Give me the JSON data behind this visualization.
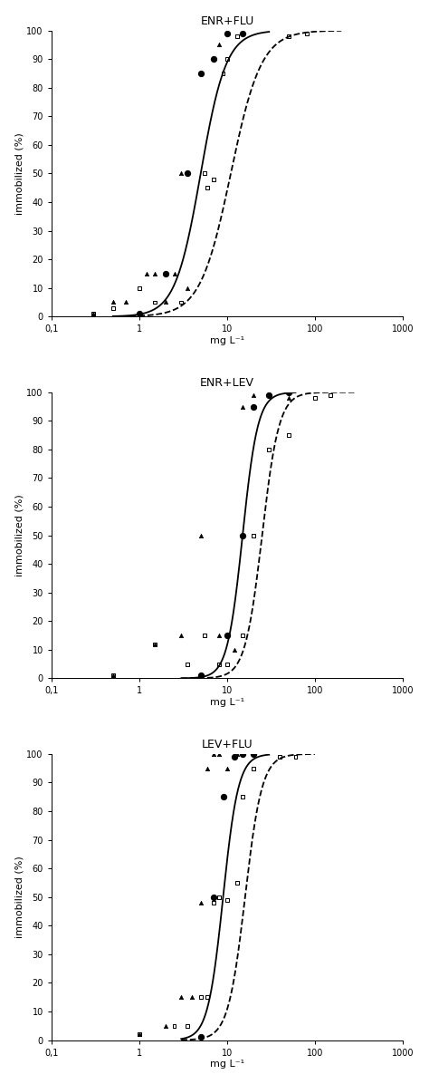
{
  "panels": [
    {
      "title": "ENR+FLU",
      "xlabel": "mg L⁻¹",
      "ylabel": "immobilized (%)",
      "xlim_log": [
        -1,
        3
      ],
      "xlim": [
        0.1,
        1000
      ],
      "ylim": [
        0,
        100
      ],
      "curve1_ec50": 5.0,
      "curve1_hill": 3.0,
      "curve1_xstart": 0.5,
      "curve1_xend": 30,
      "curve2_ec50": 11.0,
      "curve2_hill": 2.5,
      "curve2_xstart": 0.5,
      "curve2_xend": 200,
      "dot_x": [
        1.0,
        2.0,
        3.5,
        5.0,
        7.0,
        10.0,
        15.0
      ],
      "dot_y": [
        1,
        15,
        50,
        85,
        90,
        99,
        99
      ],
      "tri_x1": [
        0.3,
        0.5,
        0.7,
        1.2,
        1.5,
        2.0,
        2.5,
        3.0,
        3.5,
        5.0,
        7.0,
        8.0
      ],
      "tri_y1": [
        1,
        5,
        5,
        15,
        15,
        5,
        15,
        50,
        10,
        85,
        90,
        95
      ],
      "sq_x": [
        0.3,
        0.5,
        1.0,
        1.5,
        2.0,
        3.0,
        5.5,
        6.0,
        7.0,
        9.0,
        10.0,
        13.0,
        50.0,
        80.0
      ],
      "sq_y": [
        1,
        3,
        10,
        5,
        15,
        5,
        50,
        45,
        48,
        85,
        90,
        98,
        98,
        99
      ]
    },
    {
      "title": "ENR+LEV",
      "xlabel": "mg L⁻¹",
      "ylabel": "immobilized (%)",
      "xlim_log": [
        -0.5,
        3
      ],
      "xlim": [
        0.3,
        1000
      ],
      "ylim": [
        0,
        100
      ],
      "curve1_ec50": 15.0,
      "curve1_hill": 5.0,
      "curve1_xstart": 3.0,
      "curve1_xend": 60,
      "curve2_ec50": 25.0,
      "curve2_hill": 4.5,
      "curve2_xstart": 3.0,
      "curve2_xend": 300,
      "dot_x": [
        5.0,
        10.0,
        15.0,
        20.0,
        30.0,
        50.0
      ],
      "dot_y": [
        1,
        15,
        50,
        95,
        99,
        100
      ],
      "tri_x1": [
        0.5,
        1.5,
        3.0,
        5.0,
        8.0,
        10.0,
        12.0,
        15.0,
        20.0,
        30.0,
        50.0
      ],
      "tri_y1": [
        1,
        12,
        15,
        50,
        15,
        15,
        10,
        95,
        99,
        100,
        98
      ],
      "sq_x": [
        0.5,
        1.5,
        3.5,
        5.5,
        8.0,
        10.0,
        15.0,
        20.0,
        30.0,
        50.0,
        100.0,
        150.0
      ],
      "sq_y": [
        1,
        12,
        5,
        15,
        5,
        5,
        15,
        50,
        80,
        85,
        98,
        99
      ]
    },
    {
      "title": "LEV+FLU",
      "xlabel": "mg L⁻¹",
      "ylabel": "immobilized (%)",
      "xlim_log": [
        -0.3,
        3
      ],
      "xlim": [
        0.5,
        1000
      ],
      "ylim": [
        0,
        100
      ],
      "curve1_ec50": 9.0,
      "curve1_hill": 5.0,
      "curve1_xstart": 3.0,
      "curve1_xend": 30,
      "curve2_ec50": 16.0,
      "curve2_hill": 4.5,
      "curve2_xstart": 3.0,
      "curve2_xend": 100,
      "dot_x": [
        5.0,
        7.0,
        9.0,
        12.0,
        15.0,
        20.0
      ],
      "dot_y": [
        1,
        50,
        85,
        99,
        100,
        100
      ],
      "tri_x1": [
        1.0,
        2.0,
        3.0,
        4.0,
        5.0,
        6.0,
        7.0,
        8.0,
        10.0,
        13.0,
        15.0,
        20.0
      ],
      "tri_y1": [
        2,
        5,
        15,
        15,
        48,
        95,
        100,
        100,
        95,
        100,
        100,
        100
      ],
      "sq_x": [
        1.0,
        2.5,
        3.5,
        5.0,
        6.0,
        7.0,
        8.0,
        10.0,
        13.0,
        15.0,
        20.0,
        40.0,
        60.0
      ],
      "sq_y": [
        2,
        5,
        5,
        15,
        15,
        48,
        50,
        49,
        55,
        85,
        95,
        99,
        99
      ]
    }
  ]
}
